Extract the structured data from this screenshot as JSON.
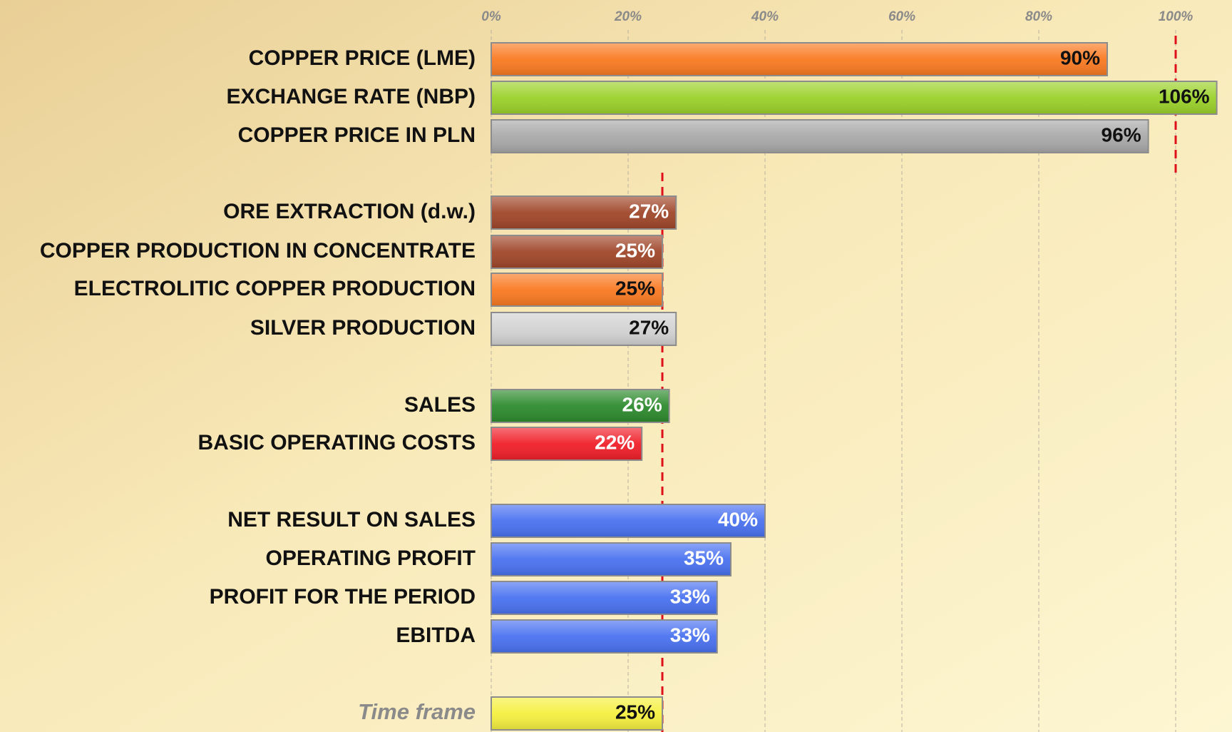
{
  "chart_data": {
    "type": "hbar",
    "categories": [
      "COPPER PRICE  (LME)",
      "EXCHANGE RATE (NBP)",
      "COPPER PRICE IN PLN",
      "ORE EXTRACTION (d.w.)",
      "COPPER PRODUCTION IN CONCENTRATE",
      "ELECTROLITIC COPPER PRODUCTION",
      "SILVER PRODUCTION",
      "SALES",
      "BASIC OPERATING COSTS",
      "NET RESULT ON SALES",
      "OPERATING PROFIT",
      "PROFIT FOR THE PERIOD",
      "EBITDA",
      "Time frame"
    ],
    "values": [
      90,
      106,
      96,
      27,
      25,
      25,
      27,
      26,
      22,
      40,
      35,
      33,
      33,
      25
    ],
    "value_labels": [
      "90%",
      "106%",
      "96%",
      "27%",
      "25%",
      "25%",
      "27%",
      "26%",
      "22%",
      "40%",
      "35%",
      "33%",
      "33%",
      "25%"
    ],
    "colors": [
      "#f97a22",
      "#9bd12a",
      "#a9a9a9",
      "#a0472a",
      "#a0472a",
      "#f97a22",
      "#d2d2d2",
      "#2e8b2e",
      "#f0202a",
      "#4a72f0",
      "#4a72f0",
      "#4a72f0",
      "#4a72f0",
      "#f5f040"
    ],
    "xlim": [
      0,
      100
    ],
    "xticks": [
      {
        "value": 0,
        "label": "0%"
      },
      {
        "value": 20,
        "label": "20%"
      },
      {
        "value": 40,
        "label": "40%"
      },
      {
        "value": 60,
        "label": "60%"
      },
      {
        "value": 80,
        "label": "80%"
      },
      {
        "value": 100,
        "label": "100%"
      }
    ],
    "reference_lines": [
      {
        "value": 100
      },
      {
        "value": 25
      }
    ],
    "grid": true
  }
}
